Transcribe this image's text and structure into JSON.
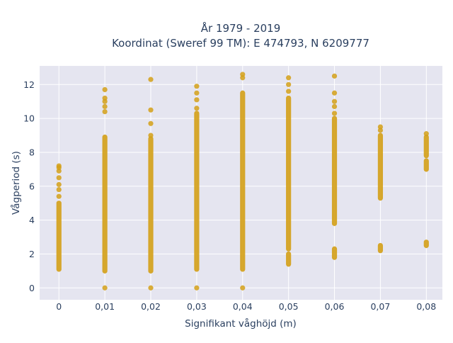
{
  "chart_data": {
    "type": "scatter",
    "title_line1": "År 1979 - 2019",
    "title_line2": "Koordinat (Sweref 99 TM): E 474793, N 6209777",
    "xlabel": "Signifikant våghöjd (m)",
    "ylabel": "Vågperiod (s)",
    "x_ticks": [
      {
        "value": 0,
        "label": "0"
      },
      {
        "value": 0.01,
        "label": "0,01"
      },
      {
        "value": 0.02,
        "label": "0,02"
      },
      {
        "value": 0.03,
        "label": "0,03"
      },
      {
        "value": 0.04,
        "label": "0,04"
      },
      {
        "value": 0.05,
        "label": "0,05"
      },
      {
        "value": 0.06,
        "label": "0,06"
      },
      {
        "value": 0.07,
        "label": "0,07"
      },
      {
        "value": 0.08,
        "label": "0,08"
      }
    ],
    "y_ticks": [
      {
        "value": 0,
        "label": "0"
      },
      {
        "value": 2,
        "label": "2"
      },
      {
        "value": 4,
        "label": "4"
      },
      {
        "value": 6,
        "label": "6"
      },
      {
        "value": 8,
        "label": "8"
      },
      {
        "value": 10,
        "label": "10"
      },
      {
        "value": 12,
        "label": "12"
      }
    ],
    "xlim": [
      -0.0042,
      0.0835
    ],
    "ylim": [
      -0.7,
      13.1
    ],
    "grid": true,
    "legend": "none",
    "colors": {
      "marker": "#d4a017",
      "plot_bg": "#e5e5f0",
      "grid": "#ffffff",
      "text": "#2a3f5f"
    },
    "series": [
      {
        "x_value": 0,
        "segments": [
          [
            1.1,
            5.0
          ]
        ],
        "points": [
          5.4,
          5.8,
          6.1,
          6.5,
          6.9,
          7.1,
          7.2
        ]
      },
      {
        "x_value": 0.01,
        "segments": [
          [
            1.0,
            8.9
          ]
        ],
        "points": [
          0.0,
          10.4,
          10.7,
          11.0,
          11.2,
          11.7
        ]
      },
      {
        "x_value": 0.02,
        "segments": [
          [
            1.0,
            8.8
          ]
        ],
        "points": [
          0.0,
          9.0,
          9.7,
          10.5,
          12.3
        ]
      },
      {
        "x_value": 0.03,
        "segments": [
          [
            1.1,
            10.3
          ]
        ],
        "points": [
          0.0,
          10.6,
          11.1,
          11.5,
          11.9
        ]
      },
      {
        "x_value": 0.04,
        "segments": [
          [
            1.1,
            11.5
          ]
        ],
        "points": [
          0.0,
          12.4,
          12.6
        ]
      },
      {
        "x_value": 0.05,
        "segments": [
          [
            2.3,
            11.2
          ],
          [
            1.4,
            2.0
          ]
        ],
        "points": [
          11.6,
          12.0,
          12.4
        ]
      },
      {
        "x_value": 0.06,
        "segments": [
          [
            3.8,
            10.0
          ],
          [
            1.8,
            2.3
          ]
        ],
        "points": [
          10.3,
          10.7,
          11.0,
          11.5,
          12.5
        ]
      },
      {
        "x_value": 0.07,
        "segments": [
          [
            5.3,
            9.0
          ],
          [
            2.2,
            2.5
          ]
        ],
        "points": [
          9.3,
          9.5
        ]
      },
      {
        "x_value": 0.08,
        "segments": [
          [
            7.0,
            7.5
          ],
          [
            7.8,
            8.9
          ],
          [
            2.5,
            2.7
          ]
        ],
        "points": [
          9.1
        ]
      }
    ]
  }
}
